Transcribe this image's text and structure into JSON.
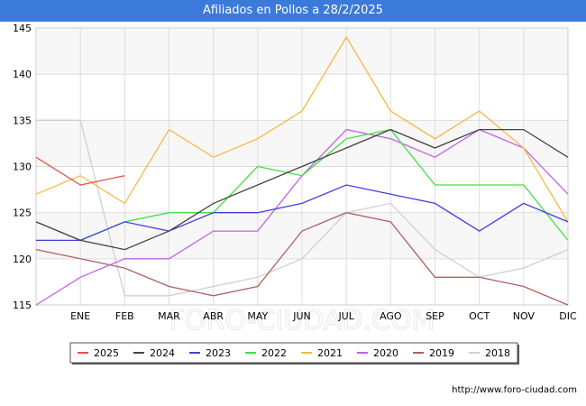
{
  "title": "Afiliados en Pollos a 28/2/2025",
  "footer": "http://www.foro-ciudad.com",
  "watermark": "FORO-CIUDAD.COM",
  "chart_data": {
    "type": "line",
    "categories": [
      "",
      "ENE",
      "FEB",
      "MAR",
      "ABR",
      "MAY",
      "JUN",
      "JUL",
      "AGO",
      "SEP",
      "OCT",
      "NOV",
      "DIC"
    ],
    "ylim": [
      115,
      145
    ],
    "yticks": [
      115,
      120,
      125,
      130,
      135,
      140,
      145
    ],
    "grid": true,
    "legend_position": "bottom",
    "series": [
      {
        "name": "2025",
        "color": "#e8524a",
        "values": [
          131,
          128,
          129,
          null,
          null,
          null,
          null,
          null,
          null,
          null,
          null,
          null,
          null
        ]
      },
      {
        "name": "2024",
        "color": "#444444",
        "values": [
          124,
          122,
          121,
          123,
          126,
          128,
          130,
          132,
          134,
          132,
          134,
          134,
          131
        ]
      },
      {
        "name": "2023",
        "color": "#4040e0",
        "values": [
          122,
          122,
          124,
          123,
          125,
          125,
          126,
          128,
          127,
          126,
          123,
          126,
          124
        ]
      },
      {
        "name": "2022",
        "color": "#40e040",
        "values": [
          124,
          122,
          124,
          125,
          125,
          130,
          129,
          133,
          134,
          128,
          128,
          128,
          122
        ]
      },
      {
        "name": "2021",
        "color": "#f5b942",
        "values": [
          127,
          129,
          126,
          134,
          131,
          133,
          136,
          144,
          136,
          133,
          136,
          132,
          124
        ]
      },
      {
        "name": "2020",
        "color": "#c060e8",
        "values": [
          115,
          118,
          120,
          120,
          123,
          123,
          129,
          134,
          133,
          131,
          134,
          132,
          127
        ]
      },
      {
        "name": "2019",
        "color": "#b06060",
        "values": [
          121,
          120,
          119,
          117,
          116,
          117,
          123,
          125,
          124,
          118,
          118,
          117,
          115
        ]
      },
      {
        "name": "2018",
        "color": "#d0d0d0",
        "values": [
          135,
          135,
          116,
          116,
          117,
          118,
          120,
          125,
          126,
          121,
          118,
          119,
          121
        ]
      }
    ]
  }
}
